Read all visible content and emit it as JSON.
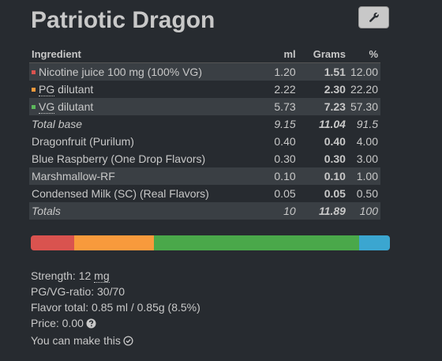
{
  "title": "Patriotic Dragon",
  "table": {
    "headers": {
      "ingredient": "Ingredient",
      "ml": "ml",
      "grams": "Grams",
      "percent": "%"
    },
    "base_rows": [
      {
        "color": "#d9534f",
        "prefix": "",
        "abbr": "",
        "name": "Nicotine juice 100 mg (100% VG)",
        "ml": "1.20",
        "grams": "1.51",
        "percent": "12.00"
      },
      {
        "color": "#f89a3c",
        "prefix": "",
        "abbr": "PG",
        "name": " dilutant",
        "ml": "2.22",
        "grams": "2.30",
        "percent": "22.20"
      },
      {
        "color": "#5cb85c",
        "prefix": "",
        "abbr": "VG",
        "name": " dilutant",
        "ml": "5.73",
        "grams": "7.23",
        "percent": "57.30"
      }
    ],
    "total_base": {
      "label": "Total base",
      "ml": "9.15",
      "grams": "11.04",
      "percent": "91.5"
    },
    "flavor_rows": [
      {
        "name": "Dragonfruit (Purilum)",
        "ml": "0.40",
        "grams": "0.40",
        "percent": "4.00"
      },
      {
        "name": "Blue Raspberry (One Drop Flavors)",
        "ml": "0.30",
        "grams": "0.30",
        "percent": "3.00"
      },
      {
        "name": "Marshmallow-RF",
        "ml": "0.10",
        "grams": "0.10",
        "percent": "1.00"
      },
      {
        "name": "Condensed Milk (SC) (Real Flavors)",
        "ml": "0.05",
        "grams": "0.05",
        "percent": "0.50"
      }
    ],
    "totals": {
      "label": "Totals",
      "ml": "10",
      "grams": "11.89",
      "percent": "100"
    }
  },
  "composition_bar": [
    {
      "color": "#d9534f",
      "fraction": 0.12
    },
    {
      "color": "#f89a3c",
      "fraction": 0.222
    },
    {
      "color": "#4aa84a",
      "fraction": 0.573
    },
    {
      "color": "#3ba6d0",
      "fraction": 0.085
    }
  ],
  "info": {
    "strength_label": "Strength: 12 ",
    "strength_unit": "mg",
    "pgvg": "PG/VG-ratio: 30/70",
    "flavor_total": "Flavor total: 0.85 ml / 0.85g (8.5%)",
    "price": "Price: 0.00",
    "make": "You can make this"
  },
  "icons": {
    "settings": "wrench-icon",
    "help": "question-circle-icon",
    "check": "check-circle-icon"
  }
}
